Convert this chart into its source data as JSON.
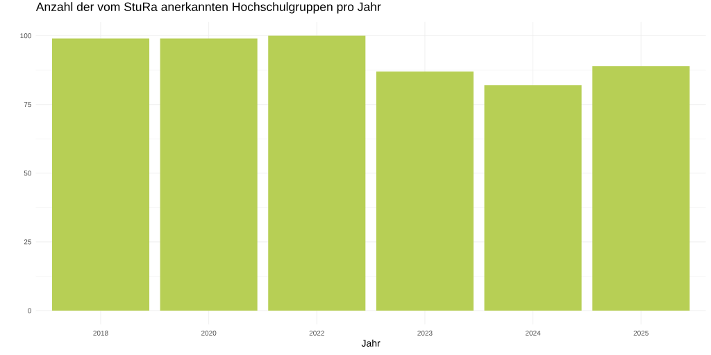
{
  "chart_data": {
    "type": "bar",
    "title": "Anzahl der vom StuRa anerkannten Hochschulgruppen pro Jahr",
    "xlabel": "Jahr",
    "categories": [
      "2018",
      "2020",
      "2022",
      "2023",
      "2024",
      "2025"
    ],
    "values": [
      99,
      99,
      100,
      87,
      82,
      89
    ],
    "color": "#b7cf55",
    "ylim": [
      -5,
      105
    ],
    "yticks": [
      0,
      25,
      50,
      75,
      100
    ],
    "grid": true
  }
}
